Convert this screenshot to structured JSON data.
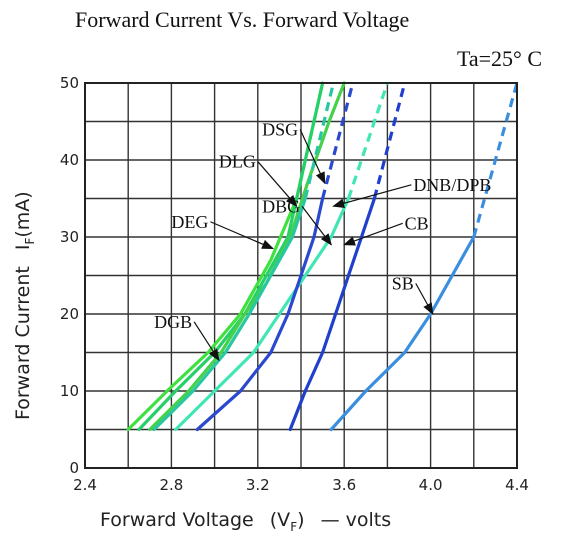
{
  "chart_data": {
    "type": "line",
    "title": "Forward Current Vs. Forward Voltage",
    "condition": "Ta=25° C",
    "xlabel": {
      "main": "Forward Voltage",
      "open": "(V",
      "sub": "F",
      "close": ")",
      "suffix": "— volts"
    },
    "ylabel": {
      "main": "Forward Current",
      "symbol": "I",
      "sub": "F",
      "unit": "(mA)"
    },
    "xlim": [
      2.4,
      4.4
    ],
    "ylim": [
      0,
      50
    ],
    "x_ticks": [
      "2.4",
      "2.8",
      "3.2",
      "3.6",
      "4.0",
      "4.4"
    ],
    "y_ticks": [
      "0",
      "10",
      "20",
      "30",
      "40",
      "50"
    ],
    "grid": true,
    "series": [
      {
        "name": "DGB",
        "color": "#3ee13e",
        "solid": [
          [
            2.6,
            5
          ],
          [
            2.78,
            10
          ],
          [
            2.97,
            15
          ],
          [
            3.12,
            20
          ],
          [
            3.26,
            27
          ],
          [
            3.38,
            35
          ]
        ],
        "dashed": [
          [
            3.38,
            35
          ],
          [
            3.5,
            50
          ]
        ]
      },
      {
        "name": "DEG",
        "color": "#25d068",
        "solid": [
          [
            2.65,
            5
          ],
          [
            2.82,
            10
          ],
          [
            3.0,
            15
          ],
          [
            3.14,
            20
          ],
          [
            3.24,
            25
          ],
          [
            3.34,
            30
          ],
          [
            3.42,
            40
          ],
          [
            3.5,
            50
          ]
        ],
        "dashed": []
      },
      {
        "name": "DLG",
        "color": "#45d24a",
        "solid": [
          [
            2.7,
            5
          ],
          [
            2.88,
            10
          ],
          [
            3.03,
            15
          ],
          [
            3.14,
            20
          ],
          [
            3.24,
            24
          ],
          [
            3.35,
            30
          ],
          [
            3.43,
            37
          ],
          [
            3.53,
            45
          ],
          [
            3.6,
            50
          ]
        ],
        "dashed": []
      },
      {
        "name": "DSG",
        "color": "#28c6a2",
        "solid": [
          [
            2.72,
            5
          ],
          [
            2.9,
            10
          ],
          [
            3.05,
            15
          ],
          [
            3.16,
            20
          ],
          [
            3.26,
            25
          ],
          [
            3.36,
            30
          ],
          [
            3.42,
            35
          ]
        ],
        "dashed": [
          [
            3.42,
            35
          ],
          [
            3.55,
            50
          ]
        ]
      },
      {
        "name": "DBG",
        "color": "#40e6b4",
        "solid": [
          [
            2.82,
            5
          ],
          [
            3.0,
            10
          ],
          [
            3.18,
            15
          ],
          [
            3.3,
            20
          ],
          [
            3.42,
            25
          ],
          [
            3.54,
            30
          ],
          [
            3.62,
            35
          ]
        ],
        "dashed": [
          [
            3.62,
            35
          ],
          [
            3.8,
            50
          ]
        ]
      },
      {
        "name": "DNB/DPB",
        "color": "#2a49cf",
        "solid": [
          [
            2.92,
            5
          ],
          [
            3.12,
            10
          ],
          [
            3.26,
            15
          ],
          [
            3.34,
            20
          ],
          [
            3.4,
            25
          ],
          [
            3.46,
            30
          ],
          [
            3.5,
            35
          ]
        ],
        "dashed": [
          [
            3.5,
            35
          ],
          [
            3.64,
            50
          ]
        ]
      },
      {
        "name": "CB",
        "color": "#1f3fcc",
        "solid": [
          [
            3.35,
            5
          ],
          [
            3.42,
            10
          ],
          [
            3.5,
            15
          ],
          [
            3.56,
            20
          ],
          [
            3.62,
            25
          ],
          [
            3.68,
            30
          ],
          [
            3.74,
            35
          ]
        ],
        "dashed": [
          [
            3.74,
            35
          ],
          [
            3.88,
            50
          ]
        ]
      },
      {
        "name": "SB",
        "color": "#3a8ee0",
        "solid": [
          [
            3.54,
            5
          ],
          [
            3.7,
            10
          ],
          [
            3.88,
            15
          ],
          [
            4.0,
            20
          ],
          [
            4.1,
            25
          ],
          [
            4.2,
            30
          ]
        ],
        "dashed": [
          [
            4.2,
            30
          ],
          [
            4.4,
            50
          ]
        ]
      }
    ],
    "annotations": [
      {
        "text": "DSG",
        "at": [
          3.22,
          43.2
        ],
        "to": [
          3.51,
          37.0
        ]
      },
      {
        "text": "DLG",
        "at": [
          3.02,
          39.0
        ],
        "to": [
          3.38,
          34.0
        ]
      },
      {
        "text": "DNB/DPB",
        "at": [
          3.92,
          36.0
        ],
        "to": [
          3.55,
          34.0
        ]
      },
      {
        "text": "DBG",
        "at": [
          3.22,
          33.2
        ],
        "to": [
          3.54,
          29.0
        ]
      },
      {
        "text": "DEG",
        "at": [
          2.8,
          31.2
        ],
        "to": [
          3.27,
          28.5
        ]
      },
      {
        "text": "CB",
        "at": [
          3.88,
          31.0
        ],
        "to": [
          3.6,
          29.0
        ]
      },
      {
        "text": "SB",
        "at": [
          3.82,
          23.2
        ],
        "to": [
          4.01,
          20.0
        ]
      },
      {
        "text": "DGB",
        "at": [
          2.72,
          18.2
        ],
        "to": [
          3.02,
          14.0
        ]
      }
    ]
  }
}
